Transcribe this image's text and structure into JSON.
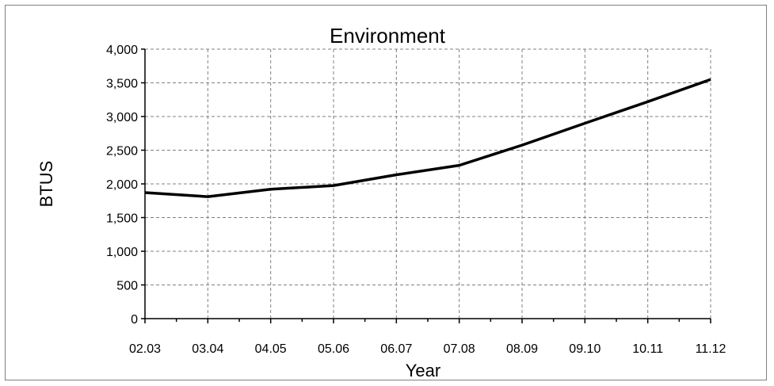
{
  "chart_data": {
    "type": "line",
    "title": "Environment",
    "xlabel": "Year",
    "ylabel": "BTUS",
    "categories": [
      "02.03",
      "03.04",
      "04.05",
      "05.06",
      "06.07",
      "07.08",
      "08.09",
      "09.10",
      "10.11",
      "11.12"
    ],
    "y_tick_labels": [
      "0",
      "500",
      "1,000",
      "1,500",
      "2,000",
      "2,500",
      "3,000",
      "3,500",
      "4,000"
    ],
    "y_ticks": [
      0,
      500,
      1000,
      1500,
      2000,
      2500,
      3000,
      3500,
      4000
    ],
    "ylim": [
      0,
      4000
    ],
    "grid": true,
    "legend": false,
    "series": [
      {
        "values": [
          1870,
          1810,
          1920,
          1975,
          2135,
          2275,
          2575,
          2900,
          3220,
          3550
        ]
      }
    ],
    "colors": {
      "line": "#000000",
      "grid": "#808080",
      "frame": "#7f7f7f"
    }
  }
}
